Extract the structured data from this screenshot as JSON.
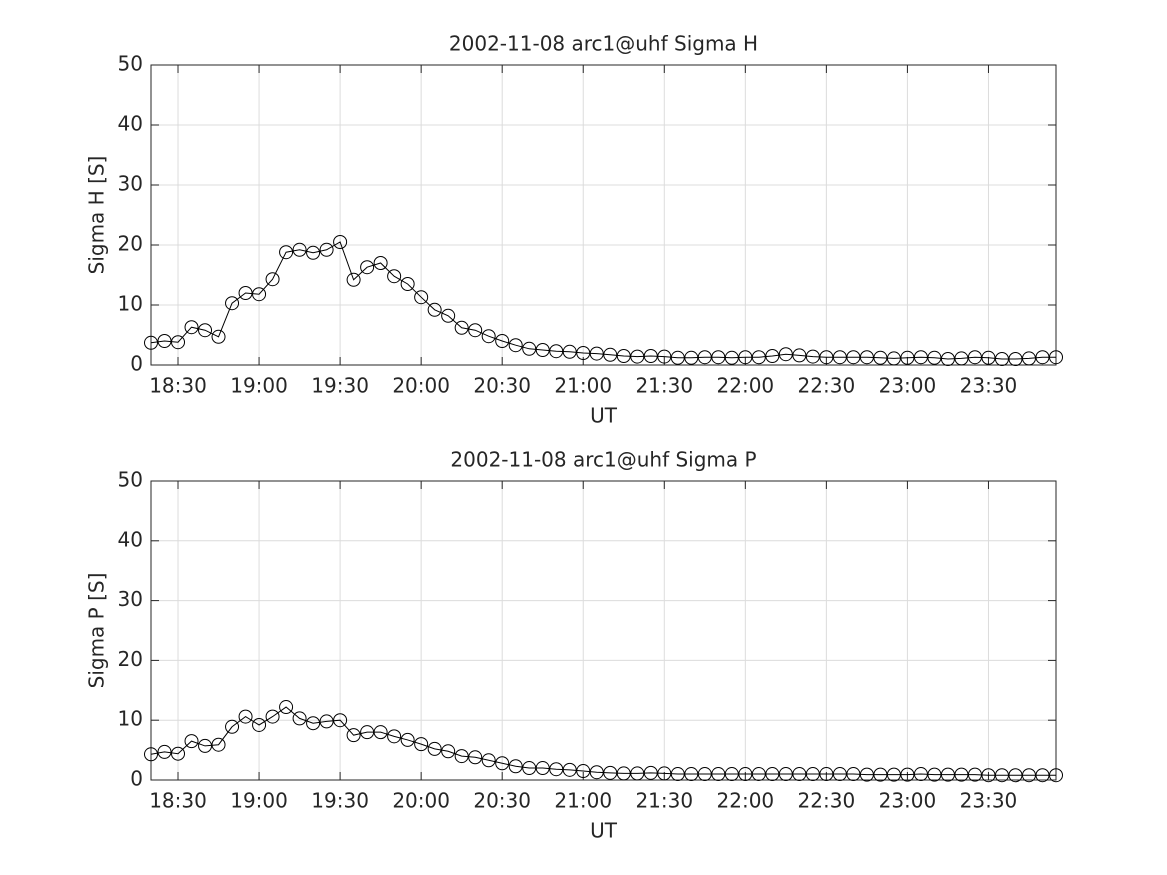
{
  "chart_data": [
    {
      "type": "line",
      "title": "2002-11-08  arc1@uhf Sigma H",
      "xlabel": "UT",
      "ylabel": "Sigma H [S]",
      "x": [
        "18:20",
        "18:25",
        "18:30",
        "18:35",
        "18:40",
        "18:45",
        "18:50",
        "18:55",
        "19:00",
        "19:05",
        "19:10",
        "19:15",
        "19:20",
        "19:25",
        "19:30",
        "19:35",
        "19:40",
        "19:45",
        "19:50",
        "19:55",
        "20:00",
        "20:05",
        "20:10",
        "20:15",
        "20:20",
        "20:25",
        "20:30",
        "20:35",
        "20:40",
        "20:45",
        "20:50",
        "20:55",
        "21:00",
        "21:05",
        "21:10",
        "21:15",
        "21:20",
        "21:25",
        "21:30",
        "21:35",
        "21:40",
        "21:45",
        "21:50",
        "21:55",
        "22:00",
        "22:05",
        "22:10",
        "22:15",
        "22:20",
        "22:25",
        "22:30",
        "22:35",
        "22:40",
        "22:45",
        "22:50",
        "22:55",
        "23:00",
        "23:05",
        "23:10",
        "23:15",
        "23:20",
        "23:25",
        "23:30",
        "23:35",
        "23:40",
        "23:45",
        "23:50",
        "23:55"
      ],
      "xlim": [
        "18:20",
        "23:55"
      ],
      "xticks": [
        "18:30",
        "19:00",
        "19:30",
        "20:00",
        "20:30",
        "21:00",
        "21:30",
        "22:00",
        "22:30",
        "23:00",
        "23:30"
      ],
      "ylim": [
        0,
        50
      ],
      "yticks": [
        0,
        10,
        20,
        30,
        40,
        50
      ],
      "grid": true,
      "marker": "circle",
      "series": [
        {
          "color": "#000000",
          "values": [
            3.7,
            4.0,
            3.8,
            6.3,
            5.8,
            4.7,
            10.3,
            12.0,
            11.8,
            14.3,
            18.8,
            19.2,
            18.7,
            19.2,
            20.5,
            14.2,
            16.3,
            17.0,
            14.8,
            13.5,
            11.3,
            9.2,
            8.2,
            6.2,
            5.8,
            4.8,
            4.0,
            3.3,
            2.7,
            2.5,
            2.3,
            2.2,
            2.0,
            1.9,
            1.7,
            1.5,
            1.4,
            1.5,
            1.4,
            1.2,
            1.2,
            1.3,
            1.3,
            1.2,
            1.3,
            1.3,
            1.5,
            1.8,
            1.6,
            1.4,
            1.3,
            1.3,
            1.3,
            1.3,
            1.2,
            1.1,
            1.2,
            1.3,
            1.2,
            1.0,
            1.1,
            1.3,
            1.2,
            1.0,
            1.0,
            1.1,
            1.3,
            1.3
          ]
        }
      ]
    },
    {
      "type": "line",
      "title": "2002-11-08  arc1@uhf Sigma P",
      "xlabel": "UT",
      "ylabel": "Sigma P [S]",
      "x": [
        "18:20",
        "18:25",
        "18:30",
        "18:35",
        "18:40",
        "18:45",
        "18:50",
        "18:55",
        "19:00",
        "19:05",
        "19:10",
        "19:15",
        "19:20",
        "19:25",
        "19:30",
        "19:35",
        "19:40",
        "19:45",
        "19:50",
        "19:55",
        "20:00",
        "20:05",
        "20:10",
        "20:15",
        "20:20",
        "20:25",
        "20:30",
        "20:35",
        "20:40",
        "20:45",
        "20:50",
        "20:55",
        "21:00",
        "21:05",
        "21:10",
        "21:15",
        "21:20",
        "21:25",
        "21:30",
        "21:35",
        "21:40",
        "21:45",
        "21:50",
        "21:55",
        "22:00",
        "22:05",
        "22:10",
        "22:15",
        "22:20",
        "22:25",
        "22:30",
        "22:35",
        "22:40",
        "22:45",
        "22:50",
        "22:55",
        "23:00",
        "23:05",
        "23:10",
        "23:15",
        "23:20",
        "23:25",
        "23:30",
        "23:35",
        "23:40",
        "23:45",
        "23:50",
        "23:55"
      ],
      "xlim": [
        "18:20",
        "23:55"
      ],
      "xticks": [
        "18:30",
        "19:00",
        "19:30",
        "20:00",
        "20:30",
        "21:00",
        "21:30",
        "22:00",
        "22:30",
        "23:00",
        "23:30"
      ],
      "ylim": [
        0,
        50
      ],
      "yticks": [
        0,
        10,
        20,
        30,
        40,
        50
      ],
      "grid": true,
      "marker": "circle",
      "series": [
        {
          "color": "#000000",
          "values": [
            4.3,
            4.7,
            4.4,
            6.5,
            5.7,
            5.9,
            8.9,
            10.6,
            9.2,
            10.6,
            12.2,
            10.3,
            9.5,
            9.8,
            10.0,
            7.5,
            8.0,
            8.0,
            7.3,
            6.7,
            6.0,
            5.2,
            4.8,
            4.0,
            3.8,
            3.3,
            2.8,
            2.3,
            2.0,
            2.0,
            1.8,
            1.7,
            1.5,
            1.3,
            1.2,
            1.1,
            1.1,
            1.2,
            1.1,
            1.0,
            1.0,
            1.0,
            1.0,
            1.0,
            1.0,
            1.0,
            1.0,
            1.0,
            1.0,
            1.0,
            1.0,
            1.0,
            1.0,
            0.9,
            0.9,
            0.9,
            0.9,
            1.0,
            0.9,
            0.9,
            0.9,
            0.9,
            0.8,
            0.8,
            0.8,
            0.8,
            0.8,
            0.8
          ]
        }
      ]
    }
  ]
}
